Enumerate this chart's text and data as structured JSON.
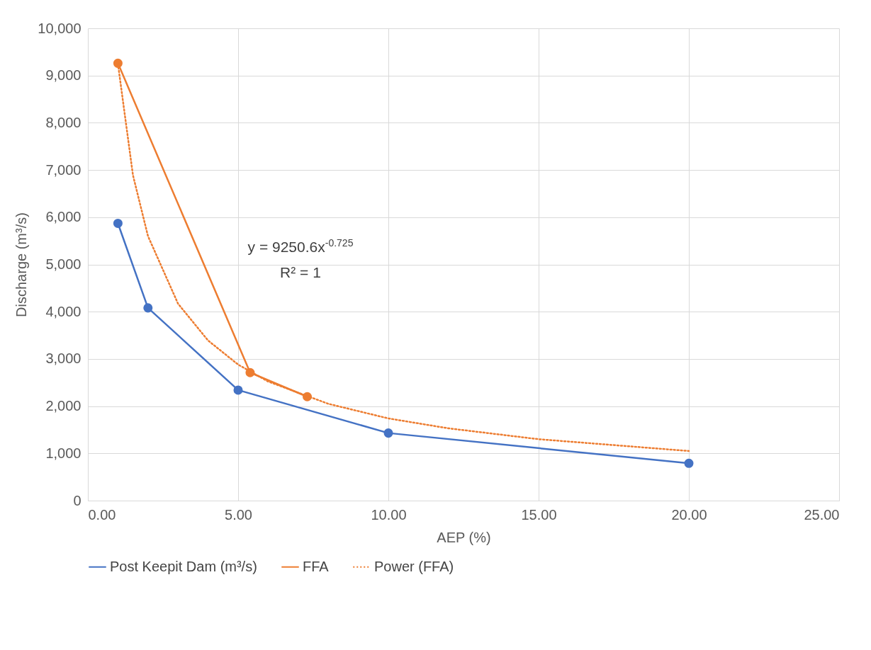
{
  "chart_data": {
    "type": "line",
    "xlabel": "AEP (%)",
    "ylabel": "Discharge (m³/s)",
    "xlim": [
      0,
      25
    ],
    "xticks": [
      {
        "value": 0,
        "label": "0.00"
      },
      {
        "value": 5,
        "label": "5.00"
      },
      {
        "value": 10,
        "label": "10.00"
      },
      {
        "value": 15,
        "label": "15.00"
      },
      {
        "value": 20,
        "label": "20.00"
      },
      {
        "value": 25,
        "label": "25.00"
      }
    ],
    "ylim": [
      0,
      10000
    ],
    "yticks": [
      0,
      {
        "value": 1000,
        "label": "1,000"
      },
      {
        "value": 2000,
        "label": "2,000"
      },
      {
        "value": 3000,
        "label": "3,000"
      },
      {
        "value": 4000,
        "label": "4,000"
      },
      {
        "value": 5000,
        "label": "5,000"
      },
      {
        "value": 6000,
        "label": "6,000"
      },
      {
        "value": 7000,
        "label": "7,000"
      },
      {
        "value": 8000,
        "label": "8,000"
      },
      {
        "value": 9000,
        "label": "9,000"
      },
      {
        "value": 10000,
        "label": "10,000"
      }
    ],
    "grid": true,
    "legend": "bottom",
    "annotations": [
      "y = 9250.6x$^{-0.725}$",
      "R² = 1"
    ],
    "series": [
      {
        "name": "Post Keepit Dam (m³/s)",
        "color": "#4472c4",
        "marker": "circle",
        "x": [
          1,
          2,
          5,
          10,
          20
        ],
        "values": [
          5870,
          4080,
          2340,
          1430,
          790
        ]
      },
      {
        "name": "FFA",
        "color": "#ed7d31",
        "marker": "circle",
        "x": [
          1,
          5.4,
          7.3
        ],
        "values": [
          9260,
          2710,
          2200
        ]
      },
      {
        "name": "Power (FFA)",
        "color": "#ed7d31",
        "marker": "none",
        "line_style": "dotted",
        "x": [
          1,
          1.5,
          2,
          3,
          4,
          5,
          6,
          8,
          10,
          12,
          15,
          20
        ],
        "values": [
          9250,
          6890,
          5600,
          4170,
          3390,
          2880,
          2520,
          2050,
          1740,
          1530,
          1300,
          1050
        ]
      }
    ]
  }
}
